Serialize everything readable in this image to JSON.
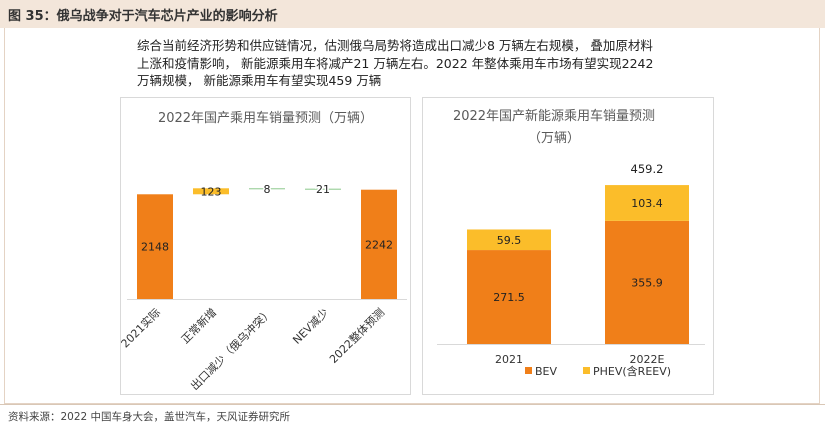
{
  "header": {
    "title": "图 35：俄乌战争对于汽车芯片产业的影响分析"
  },
  "description": {
    "lines": [
      "综合当前经济形势和供应链情况，估测俄乌局势将造成出口减少8 万辆左右规模，  叠加原材料",
      "上涨和疫情影响，  新能源乘用车将减产21 万辆左右。2022 年整体乘用车市场有望实现2242",
      "万辆规模，  新能源乘用车有望实现459 万辆"
    ]
  },
  "chart_data": [
    {
      "type": "bar",
      "subtype": "waterfall",
      "title": "2022年国产乘用车销量预测（万辆）",
      "categories": [
        "2021实际",
        "正常新增",
        "出口减少（俄乌冲突）",
        "NEV减少",
        "2022整体预测"
      ],
      "values": [
        2148,
        123,
        -8,
        -21,
        2242
      ],
      "labels": [
        "2148",
        "123",
        "8",
        "21",
        "2242"
      ],
      "measures": [
        "total",
        "relative",
        "relative",
        "relative",
        "total"
      ],
      "ylim": [
        0,
        2400
      ],
      "colors": {
        "total": "#f07f19",
        "increase": "#fbbd2a",
        "decrease": "#8cc98c"
      }
    },
    {
      "type": "bar",
      "subtype": "stacked",
      "title": "2022年国产新能源乘用车销量预测（万辆）",
      "categories": [
        "2021",
        "2022E"
      ],
      "series": [
        {
          "name": "BEV",
          "values": [
            271.5,
            355.9
          ],
          "color": "#f07f19"
        },
        {
          "name": "PHEV(含REEV)",
          "values": [
            59.5,
            103.4
          ],
          "color": "#fbbd2a"
        }
      ],
      "totals": [
        null,
        459.2
      ],
      "ylim": [
        0,
        500
      ],
      "legend": "bottom"
    }
  ],
  "source": {
    "text": "资料来源：2022 中国车身大会，盖世汽车，天风证券研究所"
  }
}
